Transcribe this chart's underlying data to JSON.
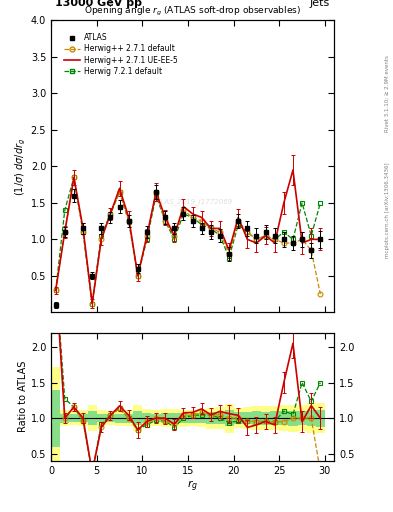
{
  "title_top": "13000 GeV pp",
  "title_right": "Jets",
  "plot_title": "Opening angle r$_g$ (ATLAS soft-drop observables)",
  "xlabel": "r$_g$",
  "ylabel_main": "(1/σ) dσ/d r_g",
  "ylabel_ratio": "Ratio to ATLAS",
  "right_label_top": "Rivet 3.1.10; ≥ 2.9M events",
  "right_label_bottom": "mcplots.cern.ch [arXiv:1306.3436]",
  "watermark": "ATLAS_2019_I1772069",
  "atlas_x": [
    0.5,
    1.5,
    2.5,
    3.5,
    4.5,
    5.5,
    6.5,
    7.5,
    8.5,
    9.5,
    10.5,
    11.5,
    12.5,
    13.5,
    14.5,
    15.5,
    16.5,
    17.5,
    18.5,
    19.5,
    20.5,
    21.5,
    22.5,
    23.5,
    24.5,
    25.5,
    26.5,
    27.5,
    28.5,
    29.5
  ],
  "atlas_y": [
    0.1,
    1.1,
    1.6,
    1.15,
    0.5,
    1.15,
    1.3,
    1.45,
    1.25,
    0.6,
    1.1,
    1.65,
    1.3,
    1.15,
    1.35,
    1.25,
    1.15,
    1.1,
    1.05,
    0.8,
    1.25,
    1.15,
    1.05,
    1.1,
    1.05,
    1.0,
    0.95,
    1.0,
    0.85,
    1.0
  ],
  "atlas_yerr": [
    0.04,
    0.07,
    0.09,
    0.07,
    0.05,
    0.07,
    0.07,
    0.09,
    0.08,
    0.06,
    0.08,
    0.1,
    0.09,
    0.08,
    0.09,
    0.08,
    0.08,
    0.09,
    0.09,
    0.09,
    0.1,
    0.1,
    0.1,
    0.1,
    0.1,
    0.1,
    0.1,
    0.1,
    0.1,
    0.12
  ],
  "herwig271_y": [
    0.3,
    1.1,
    1.85,
    1.1,
    0.12,
    1.0,
    1.35,
    1.65,
    1.25,
    0.5,
    1.05,
    1.65,
    1.25,
    1.05,
    1.4,
    1.3,
    1.25,
    1.15,
    1.1,
    0.8,
    1.25,
    1.1,
    1.0,
    1.05,
    1.0,
    0.95,
    0.95,
    1.0,
    0.85,
    0.25
  ],
  "herwig271_ue_y": [
    0.3,
    1.1,
    1.85,
    1.15,
    0.12,
    1.0,
    1.35,
    1.7,
    1.3,
    0.5,
    1.05,
    1.65,
    1.3,
    1.05,
    1.45,
    1.35,
    1.3,
    1.15,
    1.15,
    0.85,
    1.3,
    1.0,
    0.95,
    1.05,
    0.95,
    1.5,
    1.95,
    0.95,
    1.0,
    1.0
  ],
  "herwig271_ue_yerr": [
    0.05,
    0.08,
    0.1,
    0.08,
    0.06,
    0.08,
    0.08,
    0.1,
    0.09,
    0.07,
    0.09,
    0.12,
    0.1,
    0.09,
    0.1,
    0.09,
    0.09,
    0.1,
    0.1,
    0.1,
    0.12,
    0.12,
    0.12,
    0.12,
    0.12,
    0.15,
    0.2,
    0.15,
    0.15,
    0.15
  ],
  "herwig721_y": [
    0.3,
    1.4,
    1.85,
    1.1,
    0.12,
    1.05,
    1.35,
    1.65,
    1.25,
    0.5,
    1.0,
    1.6,
    1.25,
    1.0,
    1.35,
    1.3,
    1.2,
    1.15,
    1.05,
    0.75,
    1.2,
    1.1,
    1.0,
    1.05,
    1.0,
    1.1,
    1.0,
    1.5,
    1.05,
    1.5
  ],
  "xlim": [
    0,
    31
  ],
  "ylim_main": [
    0,
    4.0
  ],
  "ylim_ratio": [
    0.4,
    2.2
  ],
  "yticks_main": [
    0.5,
    1.0,
    1.5,
    2.0,
    2.5,
    3.0,
    3.5,
    4.0
  ],
  "yticks_ratio": [
    0.5,
    1.0,
    1.5,
    2.0
  ],
  "xticks": [
    0,
    5,
    10,
    15,
    20,
    25,
    30
  ],
  "atlas_color": "#000000",
  "herwig271_color": "#cc8800",
  "herwig271_ue_color": "#cc0000",
  "herwig721_color": "#008800",
  "band_yellow": "#ffff88",
  "band_green": "#88dd88"
}
